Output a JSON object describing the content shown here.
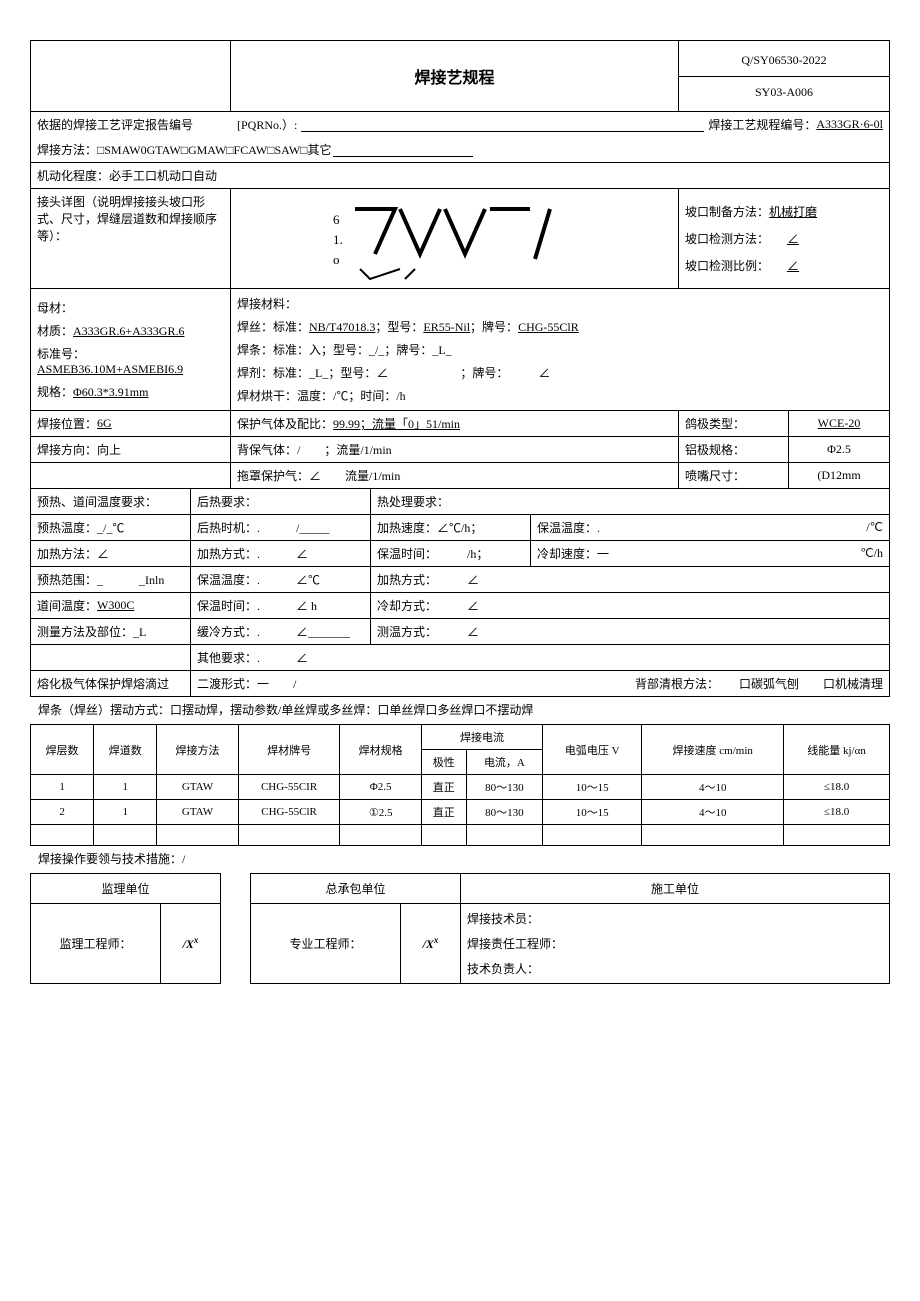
{
  "header": {
    "title": "焊接艺规程",
    "code_top": "Q/SY06530-2022",
    "code_bottom": "SY03-A006"
  },
  "pqr": {
    "label": "依据的焊接工艺评定报告编号",
    "pqr_no_label": "[PQRNo.）:",
    "wps_no_label": "焊接工艺规程编号：",
    "wps_no": "A333GR·6-0l"
  },
  "method": {
    "label": "焊接方法：□SMAW0GTAW□GMAW□FCAW□SAW□其它",
    "blank": "________________"
  },
  "mechanization": "机动化程度：必手工口机动口自动",
  "joint": {
    "label": "接头详图（说明焊接接头坡口形式、尺寸，焊缝层道数和焊接顺序等）：",
    "prep_method_label": "坡口制备方法：",
    "prep_method": "机械打磨",
    "inspect_method_label": "坡口检测方法：",
    "inspect_method_val": "∠",
    "inspect_ratio_label": "坡口检测比例：",
    "inspect_ratio_val": "∠"
  },
  "base_metal": {
    "label": "母材：",
    "material_label": "材质：",
    "material": "A333GR.6+A333GR.6",
    "std_label": "标准号：",
    "std": "ASMEB36.10M+ASMEBI6.9",
    "spec_label": "规格：",
    "spec": "Φ60.3*3.91mm"
  },
  "filler": {
    "label": "焊接材料：",
    "wire": "焊丝：标准：NB/T47018.3；型号：ER55-Nil；牌号：CHG-55ClR",
    "rod": "焊条：标准：入；型号：_/_；牌号：_L_",
    "flux": "焊剂：标准：_L_；型号：∠　　　　　　；牌号：　　　∠",
    "dry": "焊材烘干：温度：/℃；时间：/h"
  },
  "position": {
    "label": "焊接位置：",
    "val": "6G"
  },
  "shield_gas": {
    "label": "保护气体及配比：",
    "val": "99.99；流量「0」51/min"
  },
  "tungsten_type": {
    "label": "鸽极类型：",
    "val": "WCE-20"
  },
  "direction": {
    "label": "焊接方向：向上"
  },
  "back_gas": {
    "label": "背保气体：",
    "val": "/　　；流量/1/min"
  },
  "al_spec": {
    "label": "铝极规格：",
    "val": "Φ2.5"
  },
  "drag_gas": {
    "label": "拖罩保护气：",
    "val": "∠　　流量/1/min"
  },
  "nozzle": {
    "label": "喷嘴尺寸：",
    "val": "(D12mm"
  },
  "preheat": {
    "req_label": "预热、道间温度要求：",
    "post_req_label": "后热要求：",
    "heat_treat_label": "热处理要求：",
    "preheat_temp": "预热温度：_/_℃",
    "post_time": "后热时机：.　　　/_____",
    "heat_rate": "加热速度：∠℃/h；",
    "hold_temp_label": "保温温度：.",
    "hold_temp_unit": "/℃",
    "heat_method": "加热方法：∠",
    "heat_mode": "加热方式：.　　　∠",
    "hold_time": "保温时间：　　　/h；",
    "cool_rate_label": "冷却速度：一",
    "cool_rate_unit": "℃/h",
    "preheat_range": "预热范围：_　　　_Inln",
    "hold_temp2": "保温温度：.　　　∠℃",
    "heat_mode2": "加热方式：　　　∠",
    "interpass": "道间温度：W300C",
    "hold_time2": "保温时间：.　　　∠ h",
    "cool_mode": "冷却方式：　　　∠",
    "measure": "测量方法及部位：_L",
    "slow_cool": "缓冷方式：.　　　∠_______",
    "measure_mode": "测温方式：　　　∠",
    "other": "其他要求：.　　　∠"
  },
  "transfer": {
    "label": "熔化极气体保护焊熔滴过",
    "wave": "二渡形式：一　　/",
    "back_clean_label": "背部清根方法：",
    "back_clean_opts": "口碳弧气刨　　口机械清理"
  },
  "weave": "焊条（焊丝）摆动方式：口摆动焊，摆动参数/单丝焊或多丝焊：口单丝焊口多丝焊口不摆动焊",
  "params": {
    "headers": {
      "layer": "焊层数",
      "pass": "焊道数",
      "process": "焊接方法",
      "brand": "焊材牌号",
      "spec": "焊材规格",
      "current_group": "焊接电流",
      "polarity": "极性",
      "current": "电流，A",
      "voltage": "电弧电压 V",
      "speed": "焊接速度 cm/min",
      "heat": "线能量 kj/αn"
    },
    "rows": [
      {
        "layer": "1",
        "pass": "1",
        "process": "GTAW",
        "brand": "CHG-55CIR",
        "spec": "Φ2.5",
        "polarity": "直正",
        "current": "80～130",
        "voltage": "10～15",
        "speed": "4～10",
        "heat": "≤18.0"
      },
      {
        "layer": "2",
        "pass": "1",
        "process": "GTAW",
        "brand": "CHG-55ClR",
        "spec": "①2.5",
        "polarity": "直正",
        "current": "80～130",
        "voltage": "10～15",
        "speed": "4～10",
        "heat": "≤18.0"
      }
    ]
  },
  "notes": "焊接操作要领与技术措施：/",
  "sign": {
    "supervise": "监理单位",
    "general": "总承包单位",
    "construct": "施工单位",
    "supervise_eng": "监理工程师：",
    "prof_eng": "专业工程师：",
    "weld_tech": "焊接技术员：",
    "weld_resp": "焊接责任工程师：",
    "tech_lead": "技术负责人：",
    "mark": "/X"
  },
  "colors": {
    "border": "#000000",
    "bg": "#ffffff",
    "text": "#000000"
  }
}
